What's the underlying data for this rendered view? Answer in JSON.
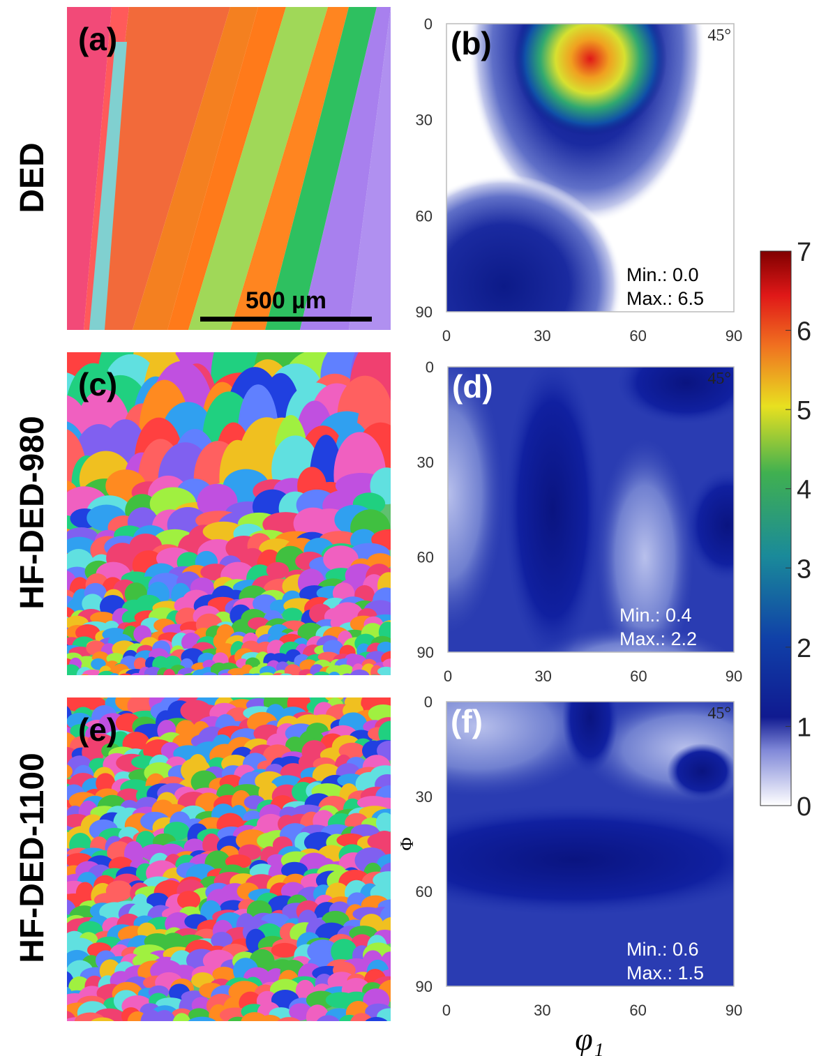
{
  "row_labels": [
    "DED",
    "HF-DED-980",
    "HF-DED-1100"
  ],
  "maps": [
    {
      "label": "(a)",
      "scale_bar": "500 µm"
    },
    {
      "label": "(c)"
    },
    {
      "label": "(e)"
    }
  ],
  "odf": [
    {
      "label": "(b)",
      "angle": "45°",
      "min": "Min.:  0.0",
      "max": "Max.: 6.5"
    },
    {
      "label": "(d)",
      "angle": "45°",
      "min": "Min.:  0.4",
      "max": "Max.: 2.2"
    },
    {
      "label": "(f)",
      "angle": "45°",
      "min": "Min.:  0.6",
      "max": "Max.: 1.5"
    }
  ],
  "axes": {
    "xticks": [
      "0",
      "30",
      "60",
      "90"
    ],
    "yticks": [
      "0",
      "30",
      "60",
      "90"
    ],
    "xlabel": "φ₁",
    "ylabel": "Φ"
  },
  "colorbar": {
    "ticks": [
      "0",
      "1",
      "2",
      "3",
      "4",
      "5",
      "6",
      "7"
    ]
  }
}
